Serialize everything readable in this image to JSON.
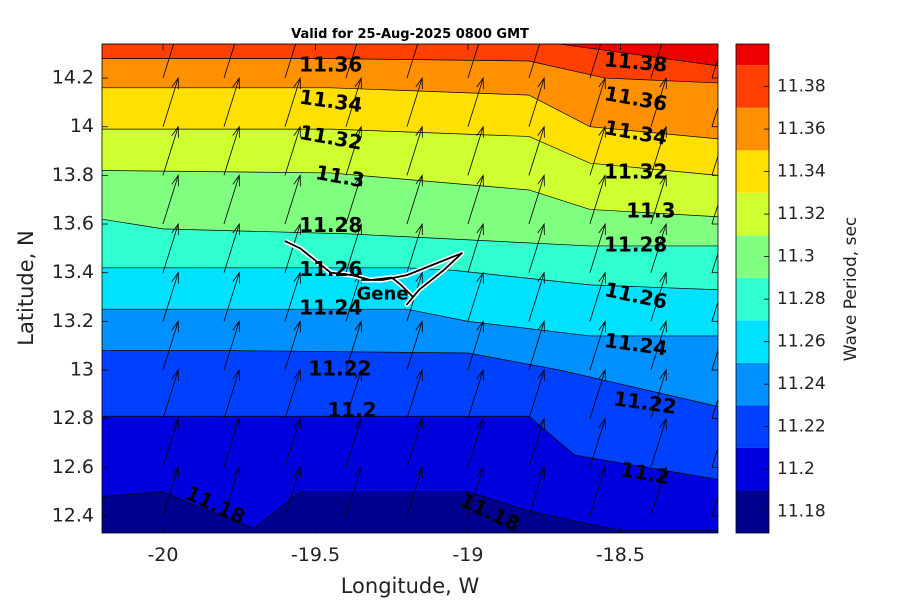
{
  "chart_data": {
    "type": "contour",
    "title": "Valid for 25-Aug-2025 0800 GMT",
    "xlabel": "Longitude, W",
    "ylabel": "Latitude, N",
    "xlim": [
      -20.2,
      -18.18
    ],
    "ylim": [
      12.33,
      14.34
    ],
    "xticks": [
      -20,
      -19.5,
      -19,
      -18.5
    ],
    "xtick_labels": [
      "-20",
      "-19.5",
      "-19",
      "-18.5"
    ],
    "yticks": [
      12.4,
      12.6,
      12.8,
      13,
      13.2,
      13.4,
      13.6,
      13.8,
      14,
      14.2
    ],
    "ytick_labels": [
      "12.4",
      "12.6",
      "12.8",
      "13",
      "13.2",
      "13.4",
      "13.6",
      "13.8",
      "14",
      "14.2"
    ],
    "grid": false,
    "colorbar": {
      "label": "Wave Period, sec",
      "levels": [
        11.18,
        11.2,
        11.22,
        11.24,
        11.26,
        11.28,
        11.3,
        11.32,
        11.34,
        11.36,
        11.38
      ],
      "tick_labels": [
        "11.18",
        "11.2",
        "11.22",
        "11.24",
        "11.26",
        "11.28",
        "11.3",
        "11.32",
        "11.34",
        "11.36",
        "11.38"
      ],
      "colors": [
        "#00008f",
        "#0000df",
        "#0040ff",
        "#0090ff",
        "#00e0ff",
        "#30ffcf",
        "#80ff80",
        "#cfff30",
        "#ffe000",
        "#ff9000",
        "#ff4000",
        "#ef0000"
      ]
    },
    "contour_lines": [
      {
        "level": 11.18,
        "x": [
          -20.2,
          -20.0,
          -19.85,
          -19.7,
          -19.55,
          -19.0,
          -18.8,
          -18.65,
          -18.5,
          -18.18
        ],
        "y": [
          12.48,
          12.5,
          12.42,
          12.35,
          12.5,
          12.5,
          12.42,
          12.38,
          12.34,
          12.34
        ]
      },
      {
        "level": 11.2,
        "x": [
          -20.2,
          -19.85,
          -18.8,
          -18.65,
          -18.18
        ],
        "y": [
          12.81,
          12.81,
          12.81,
          12.65,
          12.55
        ]
      },
      {
        "level": 11.22,
        "x": [
          -20.2,
          -19.8,
          -19.0,
          -18.7,
          -18.18
        ],
        "y": [
          13.08,
          13.08,
          13.07,
          13.0,
          12.85
        ]
      },
      {
        "level": 11.24,
        "x": [
          -20.2,
          -19.2,
          -19.0,
          -18.6,
          -18.18
        ],
        "y": [
          13.25,
          13.25,
          13.2,
          13.14,
          13.14
        ]
      },
      {
        "level": 11.26,
        "x": [
          -20.2,
          -19.2,
          -19.05,
          -18.6,
          -18.18
        ],
        "y": [
          13.42,
          13.42,
          13.41,
          13.35,
          13.33
        ]
      },
      {
        "level": 11.28,
        "x": [
          -20.2,
          -20.0,
          -19.4,
          -18.6,
          -18.18
        ],
        "y": [
          13.62,
          13.58,
          13.56,
          13.51,
          13.51
        ]
      },
      {
        "level": 11.3,
        "x": [
          -20.2,
          -19.45,
          -18.8,
          -18.6,
          -18.18
        ],
        "y": [
          13.82,
          13.81,
          13.74,
          13.66,
          13.63
        ]
      },
      {
        "level": 11.32,
        "x": [
          -20.2,
          -19.45,
          -18.8,
          -18.6,
          -18.18
        ],
        "y": [
          13.99,
          13.99,
          13.96,
          13.85,
          13.8
        ]
      },
      {
        "level": 11.34,
        "x": [
          -20.2,
          -19.45,
          -18.8,
          -18.6,
          -18.18
        ],
        "y": [
          14.16,
          14.16,
          14.13,
          14.0,
          13.95
        ]
      },
      {
        "level": 11.36,
        "x": [
          -20.2,
          -19.45,
          -18.8,
          -18.55,
          -18.18
        ],
        "y": [
          14.28,
          14.28,
          14.27,
          14.2,
          14.18
        ]
      },
      {
        "level": 11.38,
        "x": [
          -20.2,
          -19.45,
          -18.7,
          -18.18
        ],
        "y": [
          14.34,
          14.34,
          14.34,
          14.25
        ]
      }
    ],
    "contour_labels": [
      {
        "text": "11.36",
        "x": -19.45,
        "y": 14.25,
        "angle": 0
      },
      {
        "text": "11.34",
        "x": -19.45,
        "y": 14.1,
        "angle": 8
      },
      {
        "text": "11.32",
        "x": -19.45,
        "y": 13.95,
        "angle": 10
      },
      {
        "text": "11.3",
        "x": -19.42,
        "y": 13.79,
        "angle": 10
      },
      {
        "text": "11.28",
        "x": -19.45,
        "y": 13.59,
        "angle": 0
      },
      {
        "text": "11.26",
        "x": -19.45,
        "y": 13.41,
        "angle": 0
      },
      {
        "text": "11.24",
        "x": -19.45,
        "y": 13.25,
        "angle": 0
      },
      {
        "text": "11.22",
        "x": -19.42,
        "y": 13.0,
        "angle": 0
      },
      {
        "text": "11.2",
        "x": -19.38,
        "y": 12.83,
        "angle": 0
      },
      {
        "text": "11.18",
        "x": -19.83,
        "y": 12.44,
        "angle": 25
      },
      {
        "text": "11.18",
        "x": -18.93,
        "y": 12.41,
        "angle": 25
      },
      {
        "text": "11.38",
        "x": -18.45,
        "y": 14.26,
        "angle": 5
      },
      {
        "text": "11.36",
        "x": -18.45,
        "y": 14.11,
        "angle": 10
      },
      {
        "text": "11.34",
        "x": -18.45,
        "y": 13.97,
        "angle": 10
      },
      {
        "text": "11.32",
        "x": -18.45,
        "y": 13.81,
        "angle": 0
      },
      {
        "text": "11.3",
        "x": -18.4,
        "y": 13.65,
        "angle": 0
      },
      {
        "text": "11.28",
        "x": -18.45,
        "y": 13.51,
        "angle": 0
      },
      {
        "text": "11.26",
        "x": -18.45,
        "y": 13.3,
        "angle": 12
      },
      {
        "text": "11.24",
        "x": -18.45,
        "y": 13.1,
        "angle": 8
      },
      {
        "text": "11.22",
        "x": -18.42,
        "y": 12.86,
        "angle": 8
      },
      {
        "text": "11.2",
        "x": -18.42,
        "y": 12.57,
        "angle": 10
      }
    ],
    "vector_field": {
      "x": [
        -20.0,
        -19.8,
        -19.6,
        -19.4,
        -19.2,
        -19.0,
        -18.8,
        -18.6,
        -18.4,
        -18.2
      ],
      "y": [
        12.4,
        12.6,
        12.8,
        13.0,
        13.2,
        13.4,
        13.6,
        13.8,
        14.0,
        14.2
      ],
      "u": 0.05,
      "v": 0.2
    },
    "track": {
      "label": "Gene",
      "label_x": -19.28,
      "label_y": 13.31,
      "x": [
        -19.6,
        -19.55,
        -19.5,
        -19.45,
        -19.38,
        -19.32,
        -19.25,
        -19.22,
        -19.18,
        -19.2,
        -19.16,
        -19.08,
        -19.02,
        -19.12,
        -19.2,
        -19.28,
        -19.35
      ],
      "y": [
        13.53,
        13.5,
        13.45,
        13.4,
        13.39,
        13.37,
        13.38,
        13.35,
        13.3,
        13.27,
        13.33,
        13.41,
        13.48,
        13.43,
        13.39,
        13.37,
        13.37
      ]
    }
  }
}
